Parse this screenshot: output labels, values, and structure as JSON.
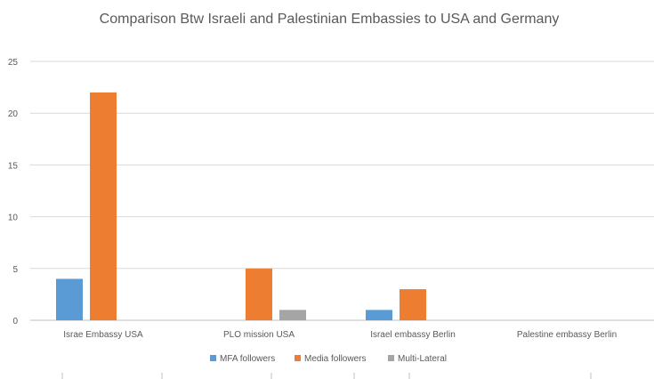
{
  "chart_data": {
    "type": "bar",
    "title": "Comparison Btw Israeli and Palestinian Embassies to USA and Germany",
    "categories": [
      "Israe Embassy USA",
      "PLO mission USA",
      "Israel embassy Berlin",
      "Palestine embassy Berlin"
    ],
    "series": [
      {
        "name": "MFA followers",
        "color": "#5b9bd5",
        "values": [
          4,
          0,
          1,
          0
        ]
      },
      {
        "name": "Media followers",
        "color": "#ed7d31",
        "values": [
          22,
          5,
          3,
          0
        ]
      },
      {
        "name": "Multi-Lateral",
        "color": "#a5a5a5",
        "values": [
          0,
          1,
          0,
          0
        ]
      }
    ],
    "yticks": [
      0,
      5,
      10,
      15,
      20,
      25
    ],
    "ylim": [
      0,
      25
    ],
    "grid": true,
    "legend": "bottom"
  }
}
